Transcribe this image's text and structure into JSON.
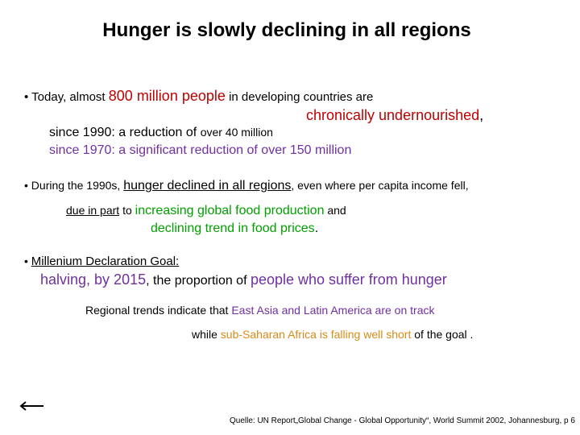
{
  "title": "Hunger is slowly declining  in all regions",
  "section1": {
    "bullet": "•",
    "lead": "Today, almost",
    "highlight1": "800 million people",
    "middle": "in developing countries  are",
    "highlight2": "chronically undernourished",
    "comma": ",",
    "since1990_label": "since  1990:  a reduction of",
    "since1990_rest": "over   40 million",
    "since1970": "since 1970:  a significant",
    "since1970_rest": "reduction of over 150 million"
  },
  "section2": {
    "bullet": "•",
    "lead": "During the 1990s,",
    "highlight": "hunger declined in all regions",
    "rest": ", even where per capita income fell,",
    "due": "due in part",
    "to": "to",
    "green1": "increasing global food production",
    "and": "and",
    "green2": "declining trend in food prices",
    "period": "."
  },
  "section3": {
    "bullet": "•",
    "heading": "Millenium Declaration Goal:",
    "goal_a": "halving, by 2015",
    "goal_b": ", the proportion of",
    "goal_c": "people who suffer from hunger",
    "regional_lead": "Regional trends indicate that",
    "regional_hl": "East Asia and Latin America are on track",
    "while": "while",
    "africa": "sub-Saharan Africa is falling well short",
    "goal_end": "of the goal ."
  },
  "footer": {
    "source": "Quelle: UN Report„Global Change - Global Opportunity“, World Summit 2002, Johannesburg,  p 6",
    "arrow_icon": "back-arrow-icon"
  }
}
